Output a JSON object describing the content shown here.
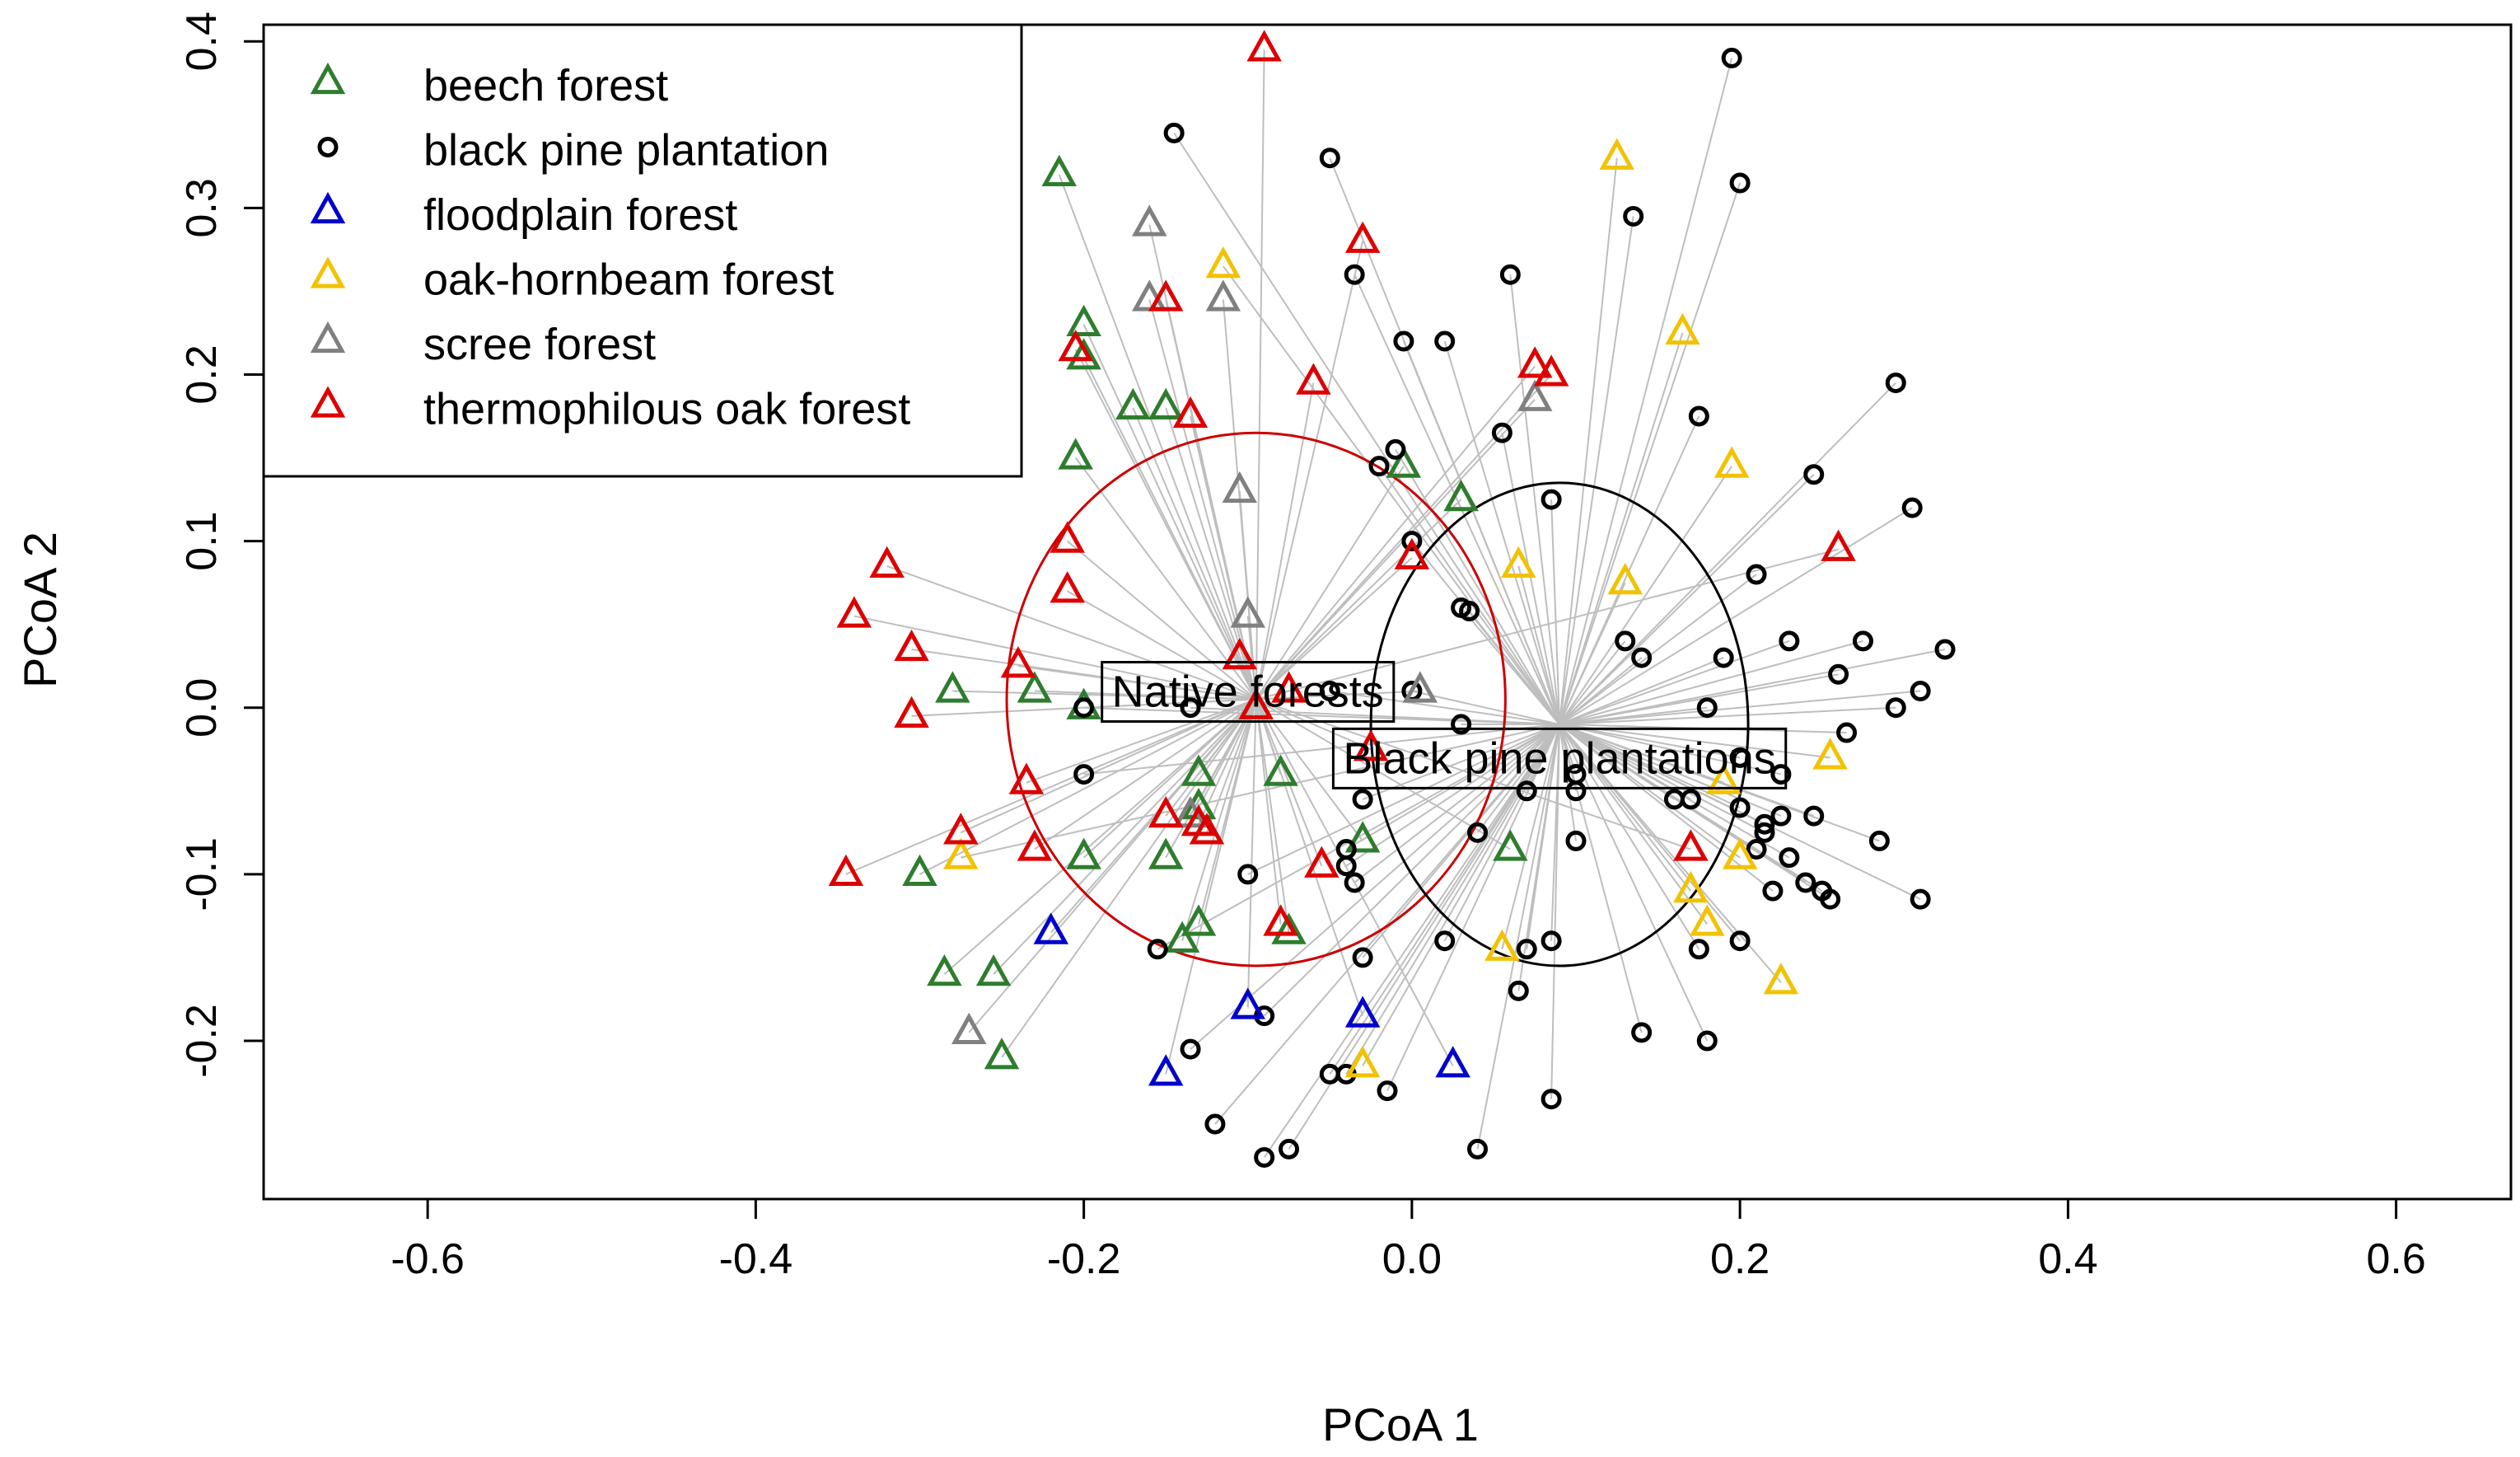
{
  "chart_data": {
    "type": "scatter",
    "title": "",
    "xlabel": "PCoA 1",
    "ylabel": "PCoA 2",
    "xlim": [
      -0.7,
      0.67
    ],
    "ylim": [
      -0.295,
      0.41
    ],
    "x_ticks": [
      -0.6,
      -0.4,
      -0.2,
      0.0,
      0.2,
      0.4,
      0.6
    ],
    "y_ticks": [
      -0.2,
      -0.1,
      0.0,
      0.1,
      0.2,
      0.3,
      0.4
    ],
    "x_tick_labels": [
      "-0.6",
      "-0.4",
      "-0.2",
      "0.0",
      "0.2",
      "0.4",
      "0.6"
    ],
    "y_tick_labels": [
      "-0.2",
      "-0.1",
      "0.0",
      "0.1",
      "0.2",
      "0.3",
      "0.4"
    ],
    "grid": false,
    "legend": {
      "position": "top-left",
      "entries": [
        {
          "label": "beech forest",
          "color": "#2E7D2E",
          "shape": "triangle"
        },
        {
          "label": "black pine plantation",
          "color": "#000000",
          "shape": "circle"
        },
        {
          "label": "floodplain forest",
          "color": "#0000CC",
          "shape": "triangle"
        },
        {
          "label": "oak-hornbeam forest",
          "color": "#F2C200",
          "shape": "triangle"
        },
        {
          "label": "scree forest",
          "color": "#808080",
          "shape": "triangle"
        },
        {
          "label": "thermophilous oak forest",
          "color": "#DD0000",
          "shape": "triangle"
        }
      ]
    },
    "groups": [
      {
        "label": "Native forests",
        "centroid": [
          -0.095,
          0.005
        ],
        "sd_radius": [
          0.152,
          0.16
        ],
        "ellipse_color": "#CC0000",
        "label_at": [
          -0.1,
          0.01
        ]
      },
      {
        "label": "Black pine plantations",
        "centroid": [
          0.09,
          -0.01
        ],
        "sd_radius": [
          0.115,
          0.145
        ],
        "ellipse_color": "#000000",
        "label_at": [
          0.09,
          -0.03
        ]
      }
    ],
    "series": [
      {
        "name": "beech forest",
        "group": 0,
        "color": "#2E7D2E",
        "shape": "triangle",
        "points": [
          [
            -0.215,
            0.32
          ],
          [
            -0.2,
            0.23
          ],
          [
            -0.2,
            0.21
          ],
          [
            -0.17,
            0.18
          ],
          [
            -0.15,
            0.18
          ],
          [
            -0.205,
            0.15
          ],
          [
            -0.28,
            0.01
          ],
          [
            -0.23,
            0.01
          ],
          [
            -0.2,
            0.0
          ],
          [
            -0.13,
            -0.04
          ],
          [
            -0.08,
            -0.04
          ],
          [
            -0.13,
            -0.06
          ],
          [
            -0.13,
            -0.13
          ],
          [
            -0.075,
            -0.135
          ],
          [
            -0.14,
            -0.14
          ],
          [
            -0.2,
            -0.09
          ],
          [
            -0.15,
            -0.09
          ],
          [
            -0.3,
            -0.1
          ],
          [
            -0.285,
            -0.16
          ],
          [
            -0.255,
            -0.16
          ],
          [
            -0.25,
            -0.21
          ],
          [
            -0.03,
            -0.08
          ],
          [
            0.03,
            0.125
          ],
          [
            0.06,
            -0.085
          ],
          [
            -0.005,
            0.145
          ]
        ]
      },
      {
        "name": "black pine plantation",
        "group": 1,
        "color": "#000000",
        "shape": "circle",
        "points": [
          [
            0.195,
            0.39
          ],
          [
            0.2,
            0.315
          ],
          [
            -0.145,
            0.345
          ],
          [
            -0.05,
            0.33
          ],
          [
            0.135,
            0.295
          ],
          [
            -0.035,
            0.26
          ],
          [
            0.06,
            0.26
          ],
          [
            -0.005,
            0.22
          ],
          [
            0.02,
            0.22
          ],
          [
            0.295,
            0.195
          ],
          [
            0.175,
            0.175
          ],
          [
            0.055,
            0.165
          ],
          [
            -0.01,
            0.155
          ],
          [
            -0.02,
            0.145
          ],
          [
            0.245,
            0.14
          ],
          [
            0.085,
            0.125
          ],
          [
            0.305,
            0.12
          ],
          [
            0.0,
            0.1
          ],
          [
            0.21,
            0.08
          ],
          [
            0.03,
            0.06
          ],
          [
            0.035,
            0.058
          ],
          [
            0.13,
            0.04
          ],
          [
            0.14,
            0.03
          ],
          [
            0.19,
            0.03
          ],
          [
            0.23,
            0.04
          ],
          [
            0.275,
            0.04
          ],
          [
            0.325,
            0.035
          ],
          [
            0.26,
            0.02
          ],
          [
            0.31,
            0.01
          ],
          [
            0.295,
            0.0
          ],
          [
            0.18,
            0.0
          ],
          [
            -0.05,
            0.01
          ],
          [
            -0.0,
            0.01
          ],
          [
            -0.2,
            0.0
          ],
          [
            -0.135,
            0.0
          ],
          [
            0.03,
            -0.01
          ],
          [
            0.265,
            -0.015
          ],
          [
            0.2,
            -0.03
          ],
          [
            0.1,
            -0.04
          ],
          [
            0.225,
            -0.04
          ],
          [
            -0.2,
            -0.04
          ],
          [
            0.07,
            -0.05
          ],
          [
            0.1,
            -0.05
          ],
          [
            0.16,
            -0.055
          ],
          [
            0.17,
            -0.055
          ],
          [
            0.2,
            -0.06
          ],
          [
            0.225,
            -0.065
          ],
          [
            0.215,
            -0.07
          ],
          [
            0.245,
            -0.065
          ],
          [
            -0.03,
            -0.055
          ],
          [
            0.215,
            -0.075
          ],
          [
            0.21,
            -0.085
          ],
          [
            0.04,
            -0.075
          ],
          [
            0.1,
            -0.08
          ],
          [
            0.285,
            -0.08
          ],
          [
            -0.04,
            -0.085
          ],
          [
            0.23,
            -0.09
          ],
          [
            -0.04,
            -0.095
          ],
          [
            -0.035,
            -0.105
          ],
          [
            -0.1,
            -0.1
          ],
          [
            0.22,
            -0.11
          ],
          [
            0.25,
            -0.11
          ],
          [
            0.255,
            -0.115
          ],
          [
            0.31,
            -0.115
          ],
          [
            0.24,
            -0.105
          ],
          [
            0.2,
            -0.14
          ],
          [
            0.175,
            -0.145
          ],
          [
            0.085,
            -0.14
          ],
          [
            0.02,
            -0.14
          ],
          [
            -0.155,
            -0.145
          ],
          [
            0.07,
            -0.145
          ],
          [
            -0.03,
            -0.15
          ],
          [
            0.065,
            -0.17
          ],
          [
            -0.09,
            -0.185
          ],
          [
            0.14,
            -0.195
          ],
          [
            0.18,
            -0.2
          ],
          [
            -0.135,
            -0.205
          ],
          [
            -0.05,
            -0.22
          ],
          [
            -0.04,
            -0.22
          ],
          [
            -0.015,
            -0.23
          ],
          [
            0.085,
            -0.235
          ],
          [
            -0.12,
            -0.25
          ],
          [
            -0.075,
            -0.265
          ],
          [
            -0.09,
            -0.27
          ],
          [
            0.04,
            -0.265
          ]
        ]
      },
      {
        "name": "floodplain forest",
        "group": 0,
        "color": "#0000CC",
        "shape": "triangle",
        "points": [
          [
            -0.22,
            -0.135
          ],
          [
            -0.1,
            -0.18
          ],
          [
            -0.03,
            -0.185
          ],
          [
            -0.15,
            -0.22
          ],
          [
            0.025,
            -0.215
          ]
        ]
      },
      {
        "name": "oak-hornbeam forest",
        "group": 1,
        "color": "#F2C200",
        "shape": "triangle",
        "points": [
          [
            0.125,
            0.33
          ],
          [
            0.165,
            0.225
          ],
          [
            0.195,
            0.145
          ],
          [
            0.065,
            0.085
          ],
          [
            0.13,
            0.075
          ],
          [
            -0.115,
            0.265
          ],
          [
            0.19,
            -0.045
          ],
          [
            0.255,
            -0.03
          ],
          [
            0.2,
            -0.09
          ],
          [
            0.17,
            -0.11
          ],
          [
            0.18,
            -0.13
          ],
          [
            0.055,
            -0.145
          ],
          [
            0.225,
            -0.165
          ],
          [
            -0.275,
            -0.09
          ],
          [
            -0.03,
            -0.215
          ]
        ]
      },
      {
        "name": "scree forest",
        "group": 0,
        "color": "#808080",
        "shape": "triangle",
        "points": [
          [
            -0.16,
            0.29
          ],
          [
            -0.16,
            0.245
          ],
          [
            -0.115,
            0.245
          ],
          [
            0.075,
            0.185
          ],
          [
            -0.105,
            0.13
          ],
          [
            -0.1,
            0.055
          ],
          [
            0.005,
            0.01
          ],
          [
            -0.135,
            -0.065
          ],
          [
            -0.27,
            -0.195
          ]
        ]
      },
      {
        "name": "thermophilous oak forest",
        "group": 0,
        "color": "#DD0000",
        "shape": "triangle",
        "points": [
          [
            -0.09,
            0.395
          ],
          [
            -0.03,
            0.28
          ],
          [
            -0.205,
            0.215
          ],
          [
            -0.15,
            0.245
          ],
          [
            -0.06,
            0.195
          ],
          [
            0.075,
            0.205
          ],
          [
            0.085,
            0.2
          ],
          [
            -0.135,
            0.175
          ],
          [
            -0.21,
            0.1
          ],
          [
            -0.21,
            0.07
          ],
          [
            0.0,
            0.09
          ],
          [
            0.26,
            0.095
          ],
          [
            -0.32,
            0.085
          ],
          [
            -0.34,
            0.055
          ],
          [
            -0.305,
            0.035
          ],
          [
            -0.24,
            0.025
          ],
          [
            -0.105,
            0.03
          ],
          [
            -0.305,
            -0.005
          ],
          [
            -0.095,
            0.0
          ],
          [
            -0.075,
            0.01
          ],
          [
            -0.025,
            -0.025
          ],
          [
            -0.235,
            -0.045
          ],
          [
            -0.15,
            -0.065
          ],
          [
            -0.13,
            -0.07
          ],
          [
            -0.125,
            -0.075
          ],
          [
            -0.275,
            -0.075
          ],
          [
            -0.23,
            -0.085
          ],
          [
            -0.055,
            -0.095
          ],
          [
            -0.08,
            -0.13
          ],
          [
            -0.345,
            -0.1
          ],
          [
            0.17,
            -0.085
          ]
        ]
      }
    ]
  }
}
